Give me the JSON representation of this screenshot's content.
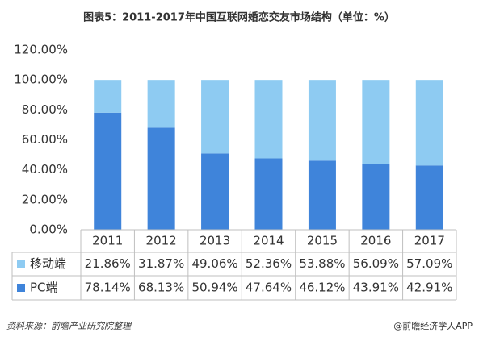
{
  "chart_data": {
    "type": "bar",
    "stacked": true,
    "title": "图表5：2011-2017年中国互联网婚恋交友市场结构（单位：%）",
    "categories": [
      "2011",
      "2012",
      "2013",
      "2014",
      "2015",
      "2016",
      "2017"
    ],
    "series": [
      {
        "name": "移动端",
        "color": "#8ecbf2",
        "values": [
          21.86,
          31.87,
          49.06,
          52.36,
          53.88,
          56.09,
          57.09
        ],
        "value_labels": [
          "21.86%",
          "31.87%",
          "49.06%",
          "52.36%",
          "53.88%",
          "56.09%",
          "57.09%"
        ]
      },
      {
        "name": "PC端",
        "color": "#3f84da",
        "values": [
          78.14,
          68.13,
          50.94,
          47.64,
          46.12,
          43.91,
          42.91
        ],
        "value_labels": [
          "78.14%",
          "68.13%",
          "50.94%",
          "47.64%",
          "46.12%",
          "43.91%",
          "42.91%"
        ]
      }
    ],
    "ylim": [
      0,
      120
    ],
    "yticks": [
      {
        "value": 0,
        "label": "0.00%"
      },
      {
        "value": 20,
        "label": "20.00%"
      },
      {
        "value": 40,
        "label": "40.00%"
      },
      {
        "value": 60,
        "label": "60.00%"
      },
      {
        "value": 80,
        "label": "80.00%"
      },
      {
        "value": 100,
        "label": "100.00%"
      },
      {
        "value": 120,
        "label": "120.00%"
      }
    ],
    "source": "资料来源：前瞻产业研究院整理",
    "credit": "@前瞻经济学人APP"
  }
}
